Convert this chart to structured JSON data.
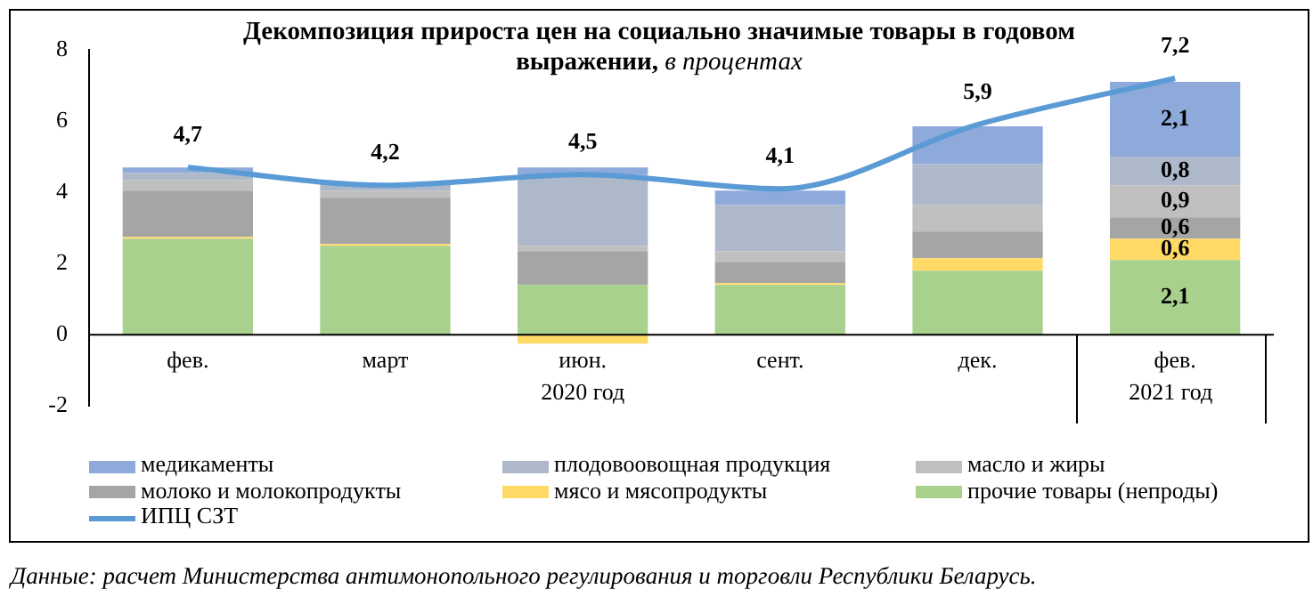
{
  "chart_data": {
    "type": "bar",
    "title": "Декомпозиция прироста цен на социально значимые товары в годовом выражении,",
    "subtitle": "в процентах",
    "categories": [
      "фев.",
      "март",
      "июн.",
      "сент.",
      "дек.",
      "фев."
    ],
    "stacked": true,
    "series": [
      {
        "name": "прочие товары (непроды)",
        "color": "#a9d18e",
        "values": [
          2.7,
          2.5,
          1.4,
          1.4,
          1.8,
          2.1
        ],
        "value_labels": [
          null,
          null,
          null,
          null,
          null,
          "2,1"
        ]
      },
      {
        "name": "мясо и мясопродукты",
        "color": "#ffd966",
        "values": [
          0.05,
          0.05,
          -0.25,
          0.05,
          0.35,
          0.6
        ],
        "value_labels": [
          null,
          null,
          null,
          null,
          null,
          "0,6"
        ]
      },
      {
        "name": "молоко и молокопродукты",
        "color": "#a5a5a5",
        "values": [
          1.3,
          1.3,
          0.95,
          0.6,
          0.75,
          0.6
        ],
        "value_labels": [
          null,
          null,
          null,
          null,
          null,
          "0,6"
        ]
      },
      {
        "name": "масло и жиры",
        "color": "#bfbfbf",
        "values": [
          0.3,
          0.2,
          0.15,
          0.3,
          0.75,
          0.9
        ],
        "value_labels": [
          null,
          null,
          null,
          null,
          null,
          "0,9"
        ]
      },
      {
        "name": "плодовоовощная продукция",
        "color": "#adb9ca",
        "values": [
          0.2,
          0.2,
          2.0,
          1.3,
          1.15,
          0.8
        ],
        "value_labels": [
          null,
          null,
          null,
          null,
          null,
          "0,8"
        ]
      },
      {
        "name": "медикаменты",
        "color": "#8eaadb",
        "values": [
          0.15,
          null,
          0.2,
          0.4,
          1.05,
          2.1
        ],
        "value_labels": [
          null,
          null,
          null,
          null,
          null,
          "2,1"
        ]
      },
      {
        "name": "ИПЦ СЗТ",
        "type": "line",
        "color": "#5b9bd5",
        "values": [
          4.7,
          4.2,
          4.5,
          4.1,
          5.9,
          7.2
        ],
        "value_labels": [
          "4,7",
          "4,2",
          "4,5",
          "4,1",
          "5,9",
          "7,2"
        ]
      }
    ],
    "ylim": [
      -2,
      8
    ],
    "yticks": [
      -2,
      0,
      2,
      4,
      6,
      8
    ],
    "grid": false,
    "legend": "bottom",
    "marker": "none",
    "annotations": [
      "2020 год",
      "2021 год",
      "Данные: расчет Министерства антимонопольного регулирования и торговли Республики Беларусь."
    ]
  }
}
